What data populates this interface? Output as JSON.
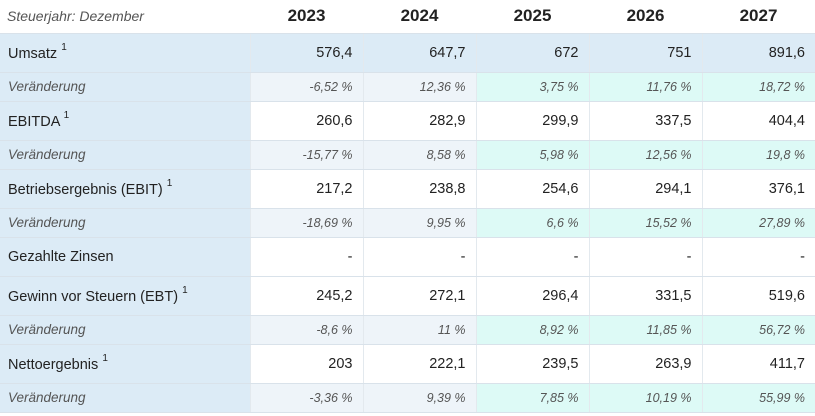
{
  "table": {
    "header_label": "Steuerjahr: Dezember",
    "years": [
      "2023",
      "2024",
      "2025",
      "2026",
      "2027"
    ],
    "rows": [
      {
        "label": "Umsatz",
        "sup": "1",
        "kind": "main",
        "blue": true,
        "values": [
          "576,4",
          "647,7",
          "672",
          "751",
          "891,6"
        ]
      },
      {
        "label": "Veränderung",
        "sup": "",
        "kind": "sub",
        "values": [
          "-6,52 %",
          "12,36 %",
          "3,75 %",
          "11,76 %",
          "18,72 %"
        ]
      },
      {
        "label": "EBITDA",
        "sup": "1",
        "kind": "main",
        "values": [
          "260,6",
          "282,9",
          "299,9",
          "337,5",
          "404,4"
        ]
      },
      {
        "label": "Veränderung",
        "sup": "",
        "kind": "sub",
        "values": [
          "-15,77 %",
          "8,58 %",
          "5,98 %",
          "12,56 %",
          "19,8 %"
        ]
      },
      {
        "label": "Betriebsergebnis (EBIT)",
        "sup": "1",
        "kind": "main",
        "values": [
          "217,2",
          "238,8",
          "254,6",
          "294,1",
          "376,1"
        ]
      },
      {
        "label": "Veränderung",
        "sup": "",
        "kind": "sub",
        "values": [
          "-18,69 %",
          "9,95 %",
          "6,6 %",
          "15,52 %",
          "27,89 %"
        ]
      },
      {
        "label": "Gezahlte Zinsen",
        "sup": "",
        "kind": "main",
        "values": [
          "-",
          "-",
          "-",
          "-",
          "-"
        ]
      },
      {
        "label": "Gewinn vor Steuern (EBT)",
        "sup": "1",
        "kind": "main",
        "values": [
          "245,2",
          "272,1",
          "296,4",
          "331,5",
          "519,6"
        ]
      },
      {
        "label": "Veränderung",
        "sup": "",
        "kind": "sub",
        "values": [
          "-8,6 %",
          "11 %",
          "8,92 %",
          "11,85 %",
          "56,72 %"
        ]
      },
      {
        "label": "Nettoergebnis",
        "sup": "1",
        "kind": "main",
        "values": [
          "203",
          "222,1",
          "239,5",
          "263,9",
          "411,7"
        ]
      },
      {
        "label": "Veränderung",
        "sup": "",
        "kind": "sub",
        "values": [
          "-3,36 %",
          "9,39 %",
          "7,85 %",
          "10,19 %",
          "55,99 %"
        ]
      }
    ]
  },
  "colors": {
    "label_bg": "#dcebf6",
    "estimate_bg": "#ddfaf6",
    "actual_sub_bg": "#eef4f9"
  }
}
